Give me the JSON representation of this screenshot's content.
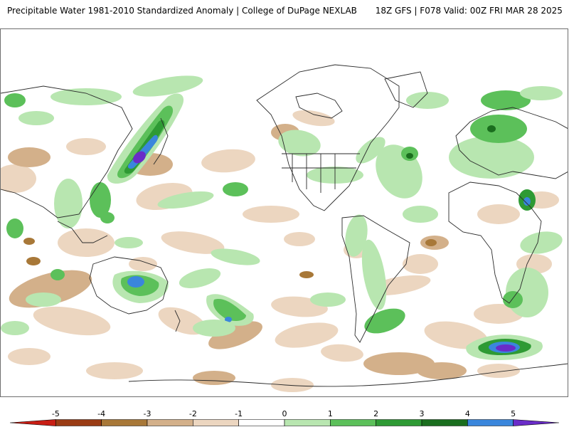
{
  "header": {
    "title": "Precipitable Water 1981-2010 Standardized Anomaly | College of DuPage NEXLAB",
    "run_info": "18Z GFS | F078 Valid: 00Z FRI MAR 28 2025"
  },
  "colors": {
    "neg5": "#c81e14",
    "neg4": "#9a3c14",
    "neg3": "#a87838",
    "neg2": "#d3b08a",
    "neg1": "#ecd6c0",
    "zero": "#ffffff",
    "pos1": "#b8e6b0",
    "pos2": "#5cc05a",
    "pos3": "#2e9a34",
    "pos4": "#1a6e1e",
    "pos5": "#3a86dc",
    "pos6": "#6a2cc8",
    "coastline": "#2a2a2a"
  },
  "legend": {
    "ticks": [
      "-5",
      "-4",
      "-3",
      "-2",
      "-1",
      "0",
      "1",
      "2",
      "3",
      "4",
      "5"
    ]
  }
}
